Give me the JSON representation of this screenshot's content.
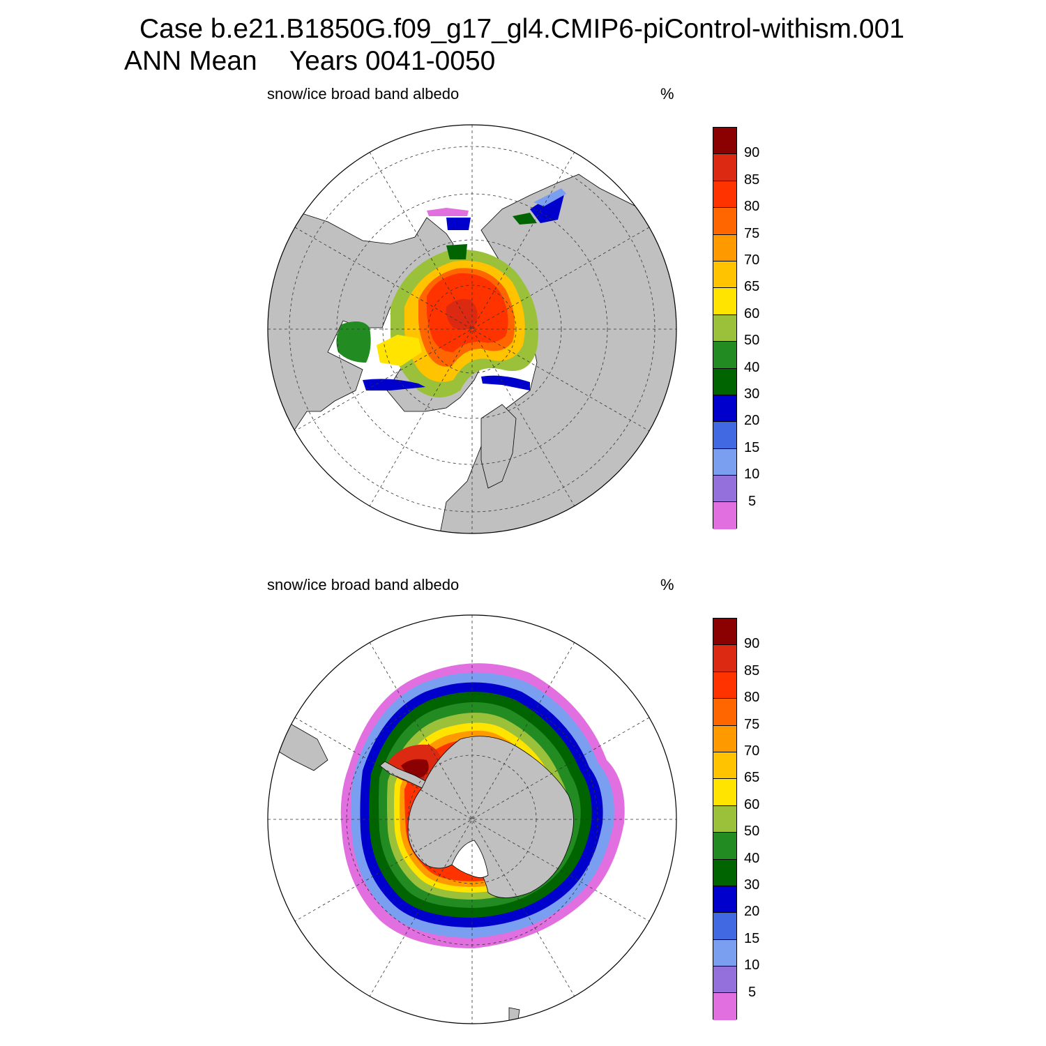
{
  "title": {
    "line1": "Case b.e21.B1850G.f09_g17_gl4.CMIP6-piControl-withism.001",
    "line2_left": "ANN Mean",
    "line2_right": "Years 0041-0050"
  },
  "panels": [
    {
      "id": "north",
      "hemisphere": "Northern",
      "title": "snow/ice broad band albedo",
      "units": "%"
    },
    {
      "id": "south",
      "hemisphere": "Southern",
      "title": "snow/ice broad band albedo",
      "units": "%"
    }
  ],
  "colorbar": {
    "labels": [
      "90",
      "85",
      "80",
      "75",
      "70",
      "65",
      "60",
      "50",
      "40",
      "30",
      "20",
      "15",
      "10",
      "5"
    ],
    "colors": [
      "#8b0000",
      "#dc2a12",
      "#ff3300",
      "#ff6600",
      "#ff9900",
      "#ffc300",
      "#ffe400",
      "#9bc13b",
      "#228b22",
      "#006400",
      "#0000cd",
      "#4169e1",
      "#7b9ff0",
      "#9370db",
      "#e26fe0"
    ]
  },
  "map_colors": {
    "land": "#c0c0c0",
    "ocean": "#ffffff",
    "grid": "#000000"
  }
}
